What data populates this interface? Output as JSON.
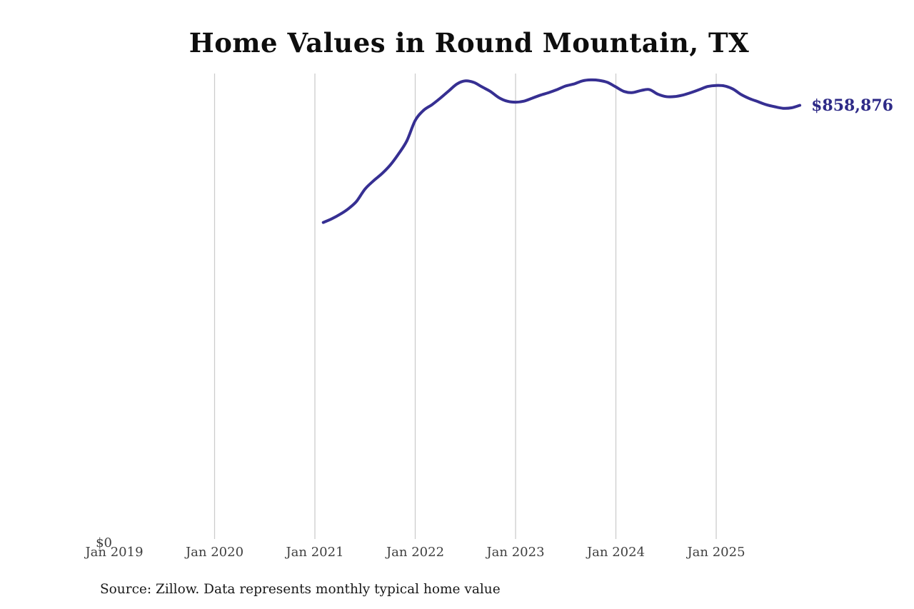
{
  "title": "Home Values in Round Mountain, TX",
  "source_note": "Source: Zillow. Data represents monthly typical home value",
  "end_label": "$858,876",
  "y_zero_label": "$0",
  "colors": {
    "line": "#362f92",
    "end_label": "#2e2a87",
    "gridline": "#cccccc",
    "axis_text": "#3f3f3f",
    "title_text": "#0e0e0e",
    "source_text": "#191919"
  },
  "chart_data": {
    "type": "line",
    "title": "Home Values in Round Mountain, TX",
    "xlabel": "",
    "ylabel": "",
    "x_tick_labels": [
      "Jan 2019",
      "Jan 2020",
      "Jan 2021",
      "Jan 2022",
      "Jan 2023",
      "Jan 2024",
      "Jan 2025"
    ],
    "y_tick_labels": [
      "$0"
    ],
    "ylim": [
      0,
      920000
    ],
    "x_range_months": [
      "2019-01",
      "2025-12"
    ],
    "grid": "vertical-gridlines-only",
    "legend": "none",
    "annotations": [
      {
        "text": "$858,876",
        "at_month": "2025-11",
        "value": 858876
      }
    ],
    "series": [
      {
        "name": "Monthly typical home value",
        "months": [
          "2021-02",
          "2021-03",
          "2021-04",
          "2021-05",
          "2021-06",
          "2021-07",
          "2021-08",
          "2021-09",
          "2021-10",
          "2021-11",
          "2021-12",
          "2022-01",
          "2022-02",
          "2022-03",
          "2022-04",
          "2022-05",
          "2022-06",
          "2022-07",
          "2022-08",
          "2022-09",
          "2022-10",
          "2022-11",
          "2022-12",
          "2023-01",
          "2023-02",
          "2023-03",
          "2023-04",
          "2023-05",
          "2023-06",
          "2023-07",
          "2023-08",
          "2023-09",
          "2023-10",
          "2023-11",
          "2023-12",
          "2024-01",
          "2024-02",
          "2024-03",
          "2024-04",
          "2024-05",
          "2024-06",
          "2024-07",
          "2024-08",
          "2024-09",
          "2024-10",
          "2024-11",
          "2024-12",
          "2025-01",
          "2025-02",
          "2025-03",
          "2025-04",
          "2025-05",
          "2025-06",
          "2025-07",
          "2025-08",
          "2025-09",
          "2025-10",
          "2025-11"
        ],
        "values": [
          628000,
          635000,
          644000,
          655000,
          670000,
          694000,
          710000,
          724000,
          741000,
          763000,
          789000,
          829000,
          849000,
          860000,
          873000,
          887000,
          901000,
          907000,
          904000,
          895000,
          886000,
          874000,
          867000,
          865000,
          867000,
          873000,
          879000,
          884000,
          890000,
          897000,
          901000,
          907000,
          909000,
          908000,
          904000,
          895000,
          886000,
          884000,
          888000,
          890000,
          881000,
          876000,
          876000,
          879000,
          884000,
          890000,
          896000,
          898000,
          897000,
          891000,
          880000,
          872000,
          866000,
          860000,
          856000,
          853000,
          854000,
          858876
        ],
        "last_value_exact": 858876
      }
    ]
  }
}
